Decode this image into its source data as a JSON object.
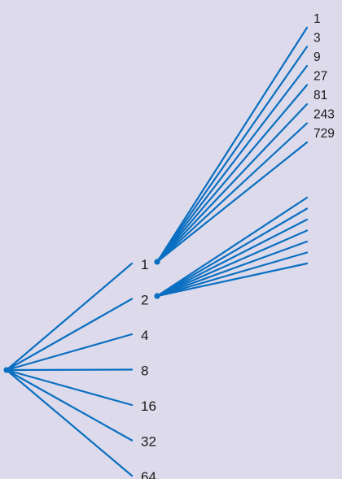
{
  "colors": {
    "background": "#dcdaeb",
    "line": "#0a6fc0",
    "text": "#1a1a1a"
  },
  "powers_of_two": {
    "labels": [
      "1",
      "2",
      "4",
      "8",
      "16",
      "32",
      "64"
    ]
  },
  "powers_of_three": {
    "labels": [
      "1",
      "3",
      "9",
      "27",
      "81",
      "243",
      "729"
    ]
  },
  "branch_from_2": {
    "line_count": 7
  }
}
